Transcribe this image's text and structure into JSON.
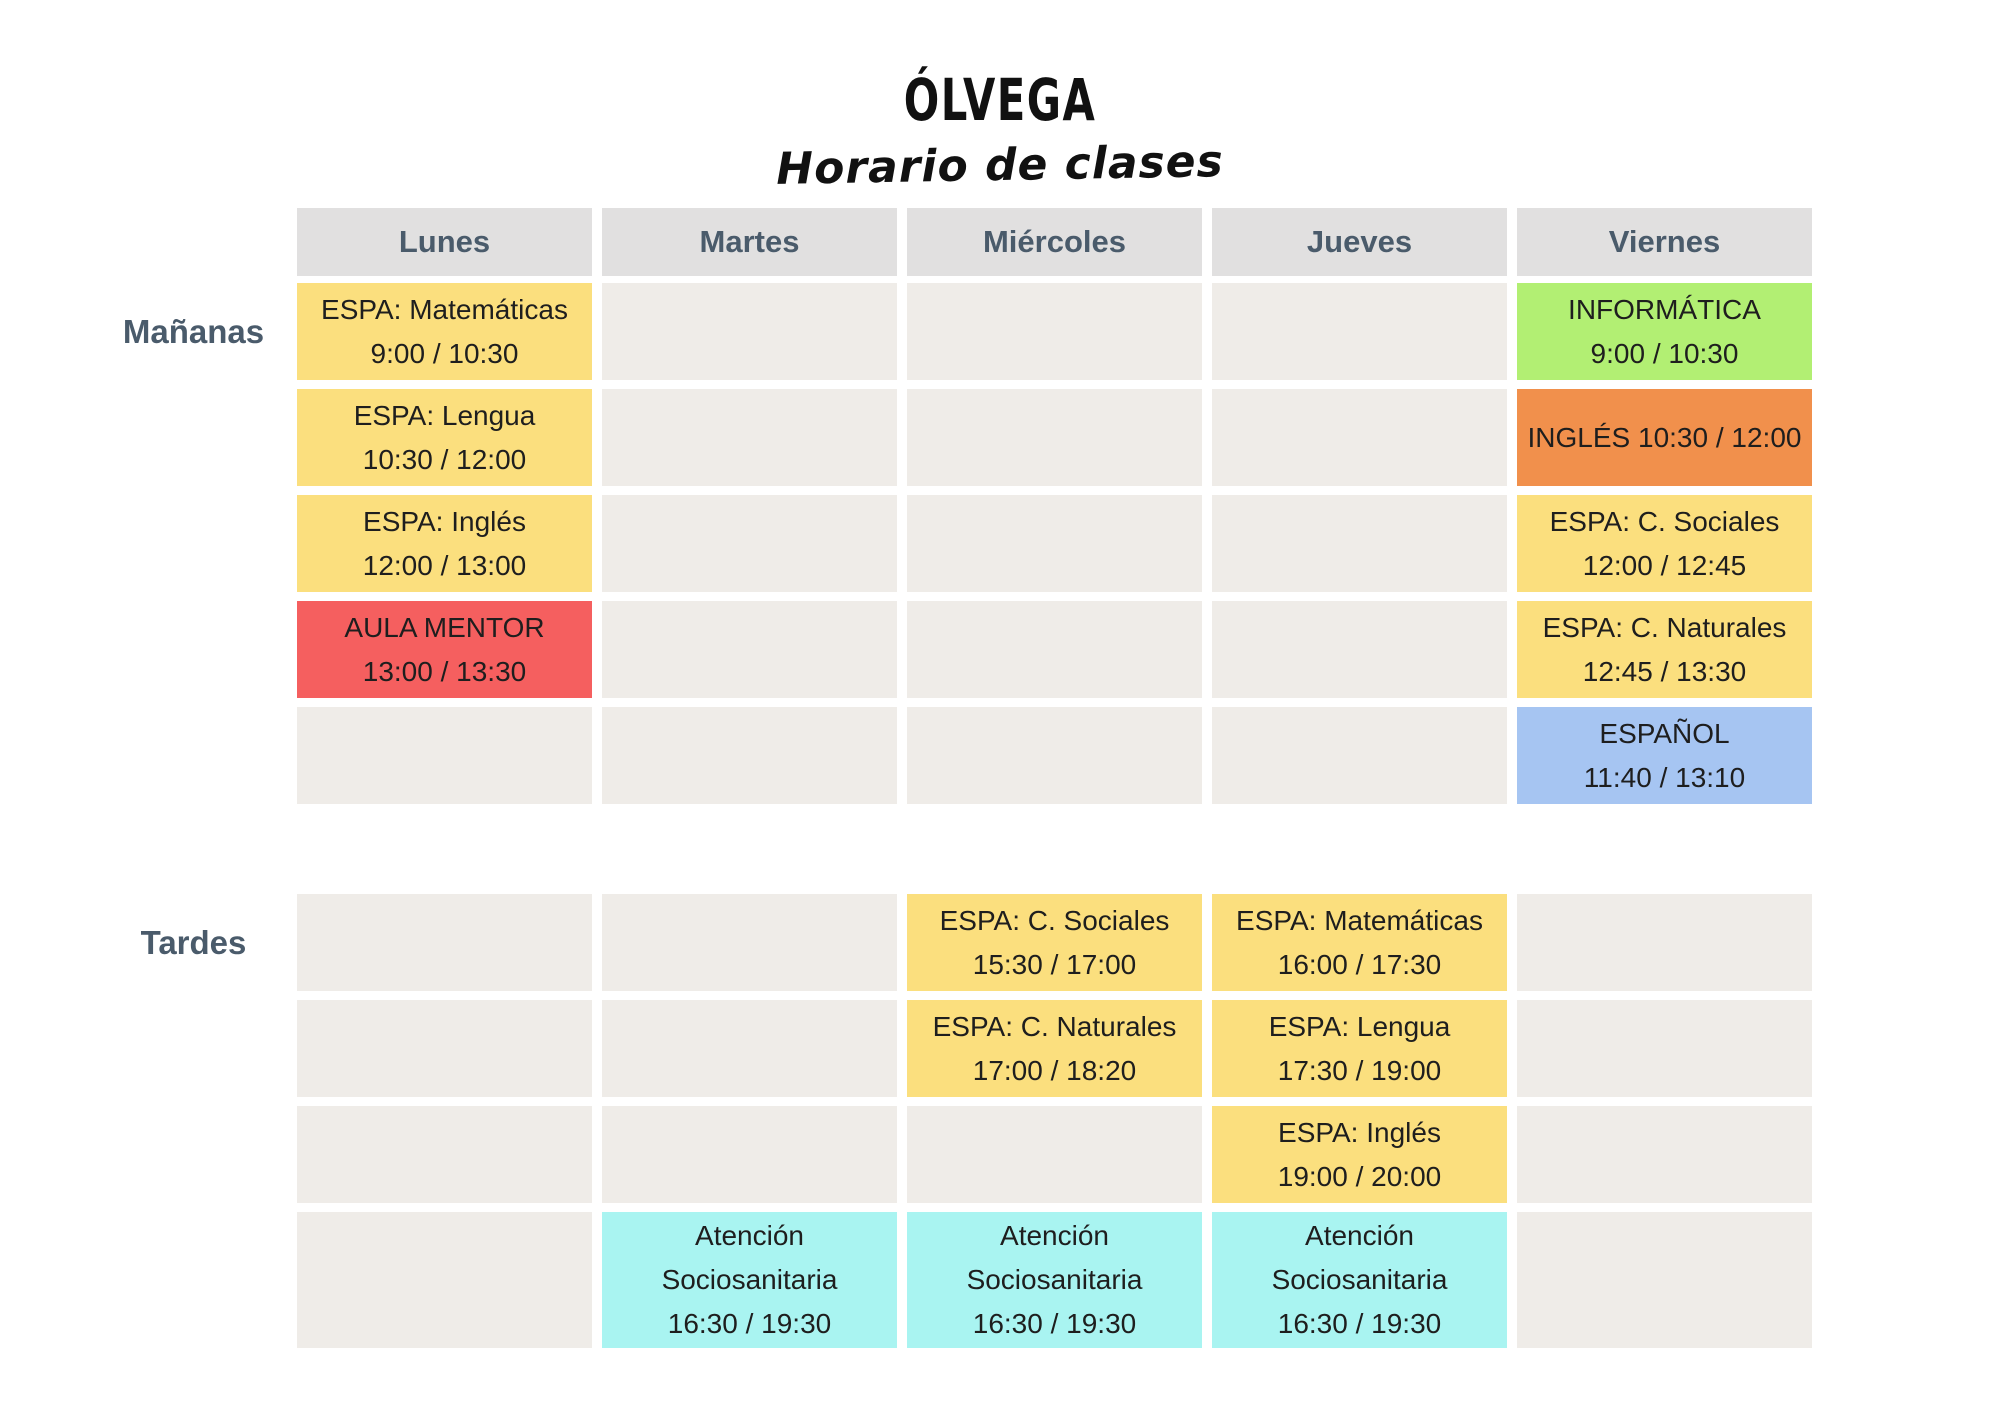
{
  "title": "ÓLVEGA",
  "subtitle": "Horario de clases",
  "days": [
    "Lunes",
    "Martes",
    "Miércoles",
    "Jueves",
    "Viernes"
  ],
  "colors": {
    "yellow": "#FBDF7E",
    "red": "#F55F5F",
    "green": "#B2EF73",
    "orange": "#F1904C",
    "blue": "#A6C5F2",
    "cyan": "#A9F4F1",
    "empty": "#EFECE8",
    "header_bg": "#E1E0E0",
    "heading_text": "#4A5B6B",
    "cell_text": "#1E1E1E"
  },
  "sections": [
    {
      "label": "Mañanas",
      "grid": [
        [
          {
            "color": "yellow",
            "lines": [
              "ESPA: Matemáticas",
              "9:00 / 10:30"
            ]
          },
          null,
          null,
          null,
          {
            "color": "green",
            "lines": [
              "INFORMÁTICA",
              "9:00 / 10:30"
            ]
          }
        ],
        [
          {
            "color": "yellow",
            "lines": [
              "ESPA: Lengua",
              "10:30 / 12:00"
            ]
          },
          null,
          null,
          null,
          {
            "color": "orange",
            "lines": [
              "INGLÉS 10:30 / 12:00"
            ]
          }
        ],
        [
          {
            "color": "yellow",
            "lines": [
              "ESPA: Inglés",
              "12:00 / 13:00"
            ]
          },
          null,
          null,
          null,
          {
            "color": "yellow",
            "lines": [
              "ESPA: C. Sociales",
              "12:00 / 12:45"
            ]
          }
        ],
        [
          {
            "color": "red",
            "lines": [
              "AULA MENTOR",
              "13:00 / 13:30"
            ]
          },
          null,
          null,
          null,
          {
            "color": "yellow",
            "lines": [
              "ESPA: C. Naturales",
              "12:45 / 13:30"
            ]
          }
        ],
        [
          null,
          null,
          null,
          null,
          {
            "color": "blue",
            "lines": [
              "ESPAÑOL",
              "11:40 / 13:10"
            ]
          }
        ]
      ]
    },
    {
      "label": "Tardes",
      "grid": [
        [
          null,
          null,
          {
            "color": "yellow",
            "lines": [
              "ESPA: C. Sociales",
              "15:30 / 17:00"
            ]
          },
          {
            "color": "yellow",
            "lines": [
              "ESPA: Matemáticas",
              "16:00 / 17:30"
            ]
          },
          null
        ],
        [
          null,
          null,
          {
            "color": "yellow",
            "lines": [
              "ESPA: C. Naturales",
              "17:00 / 18:20"
            ]
          },
          {
            "color": "yellow",
            "lines": [
              "ESPA: Lengua",
              "17:30 / 19:00"
            ]
          },
          null
        ],
        [
          null,
          null,
          null,
          {
            "color": "yellow",
            "lines": [
              "ESPA: Inglés",
              "19:00 / 20:00"
            ]
          },
          null
        ],
        [
          null,
          {
            "color": "cyan",
            "lines": [
              "Atención",
              "Sociosanitaria",
              "16:30 / 19:30"
            ]
          },
          {
            "color": "cyan",
            "lines": [
              "Atención",
              "Sociosanitaria",
              "16:30 / 19:30"
            ]
          },
          {
            "color": "cyan",
            "lines": [
              "Atención",
              "Sociosanitaria",
              "16:30 / 19:30"
            ]
          },
          null
        ]
      ]
    }
  ]
}
